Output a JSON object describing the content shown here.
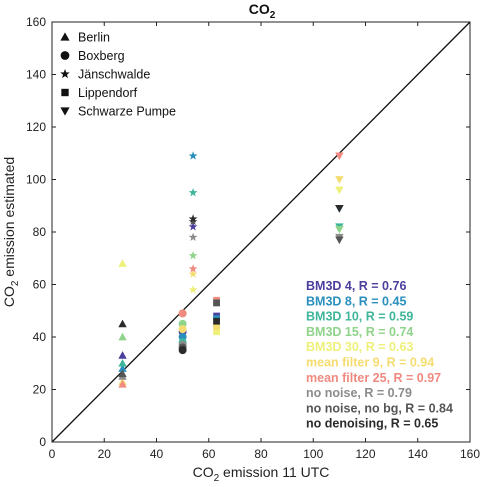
{
  "chart_data": {
    "type": "scatter",
    "title": {
      "main": "CO",
      "sub": "2"
    },
    "xlabel": {
      "pre": "CO",
      "sub": "2",
      "post": " emission 11 UTC"
    },
    "ylabel": {
      "pre": "CO",
      "sub": "2",
      "post": " emission estimated"
    },
    "xlim": [
      0,
      160
    ],
    "ylim": [
      0,
      160
    ],
    "xticks": [
      "0",
      "20",
      "40",
      "60",
      "80",
      "100",
      "120",
      "140",
      "160"
    ],
    "yticks": [
      "0",
      "20",
      "40",
      "60",
      "80",
      "100",
      "120",
      "140",
      "160"
    ],
    "grid": false,
    "identity_line": true,
    "marker_legend": [
      {
        "label": "Berlin",
        "marker": "triangle-up"
      },
      {
        "label": "Boxberg",
        "marker": "circle"
      },
      {
        "label": "Jänschwalde",
        "marker": "star"
      },
      {
        "label": "Lippendorf",
        "marker": "square"
      },
      {
        "label": "Schwarze Pumpe",
        "marker": "triangle-down"
      }
    ],
    "series": [
      {
        "name": "BM3D 4, R = 0.76",
        "color": "#4b3f9e",
        "points": [
          [
            27,
            33
          ],
          [
            50,
            42
          ],
          [
            54,
            82
          ],
          [
            63,
            48
          ],
          [
            110,
            89
          ]
        ]
      },
      {
        "name": "BM3D 8, R = 0.45",
        "color": "#2a8fbd",
        "points": [
          [
            27,
            28
          ],
          [
            50,
            40
          ],
          [
            54,
            109
          ],
          [
            63,
            47
          ],
          [
            110,
            89
          ]
        ]
      },
      {
        "name": "BM3D 10, R = 0.59",
        "color": "#3fb59a",
        "points": [
          [
            27,
            30
          ],
          [
            50,
            38
          ],
          [
            54,
            95
          ],
          [
            63,
            46
          ],
          [
            110,
            82
          ]
        ]
      },
      {
        "name": "BM3D 15, R = 0.74",
        "color": "#8fd48a",
        "points": [
          [
            27,
            40
          ],
          [
            50,
            45
          ],
          [
            54,
            71
          ],
          [
            63,
            45
          ],
          [
            110,
            81
          ]
        ]
      },
      {
        "name": "BM3D 30, R = 0.63",
        "color": "#eef07a",
        "points": [
          [
            27,
            68
          ],
          [
            50,
            49
          ],
          [
            54,
            58
          ],
          [
            63,
            42
          ],
          [
            110,
            96
          ]
        ]
      },
      {
        "name": "mean filter 9, R = 0.94",
        "color": "#f5dc70",
        "points": [
          [
            27,
            23
          ],
          [
            50,
            43
          ],
          [
            54,
            64
          ],
          [
            63,
            44
          ],
          [
            110,
            100
          ]
        ]
      },
      {
        "name": "mean filter 25, R = 0.97",
        "color": "#f08a80",
        "points": [
          [
            27,
            22
          ],
          [
            50,
            49
          ],
          [
            54,
            66
          ],
          [
            63,
            54
          ],
          [
            110,
            109
          ]
        ]
      },
      {
        "name": "no noise, R = 0.79",
        "color": "#8c8c8c",
        "points": [
          [
            27,
            25
          ],
          [
            50,
            37
          ],
          [
            54,
            78
          ],
          [
            63,
            53
          ],
          [
            110,
            78
          ]
        ]
      },
      {
        "name": "no noise, no bg, R = 0.84",
        "color": "#555555",
        "points": [
          [
            27,
            26
          ],
          [
            50,
            36
          ],
          [
            54,
            84
          ],
          [
            63,
            53
          ],
          [
            110,
            77
          ]
        ]
      },
      {
        "name": "no denoising, R = 0.65",
        "color": "#2b2b2b",
        "points": [
          [
            27,
            45
          ],
          [
            50,
            35
          ],
          [
            54,
            85
          ],
          [
            63,
            46
          ],
          [
            110,
            89
          ]
        ]
      }
    ]
  }
}
